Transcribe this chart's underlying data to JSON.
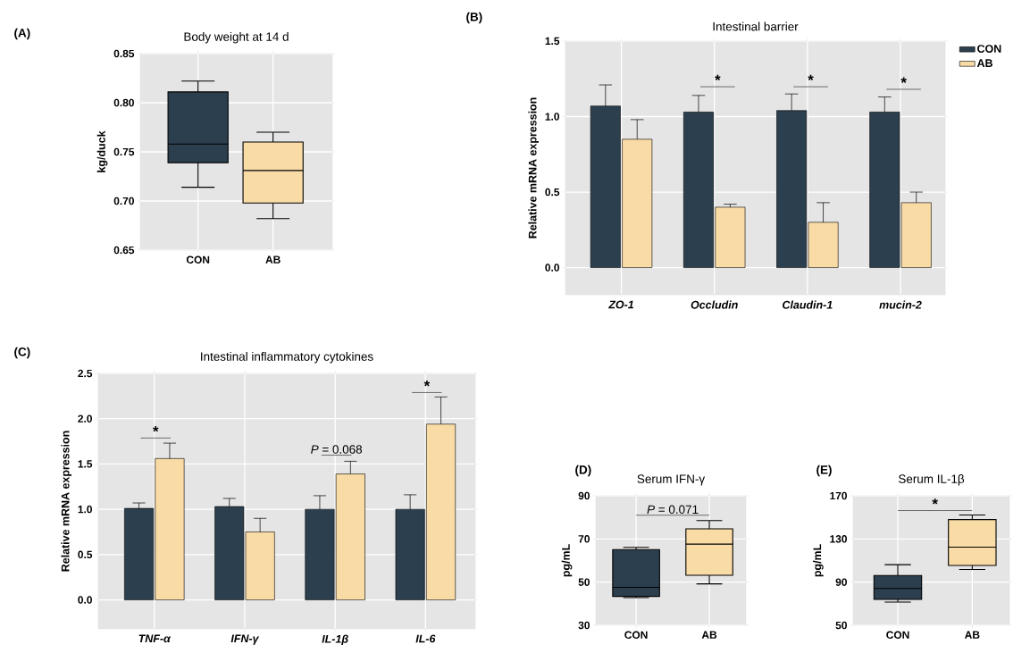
{
  "chart_data": [
    {
      "type": "box",
      "title": "Body weight at 14 d",
      "ylabel": "kg/duck",
      "categories": [
        "CON",
        "AB"
      ],
      "colors": [
        "#2b3f4e",
        "#f9dba6"
      ],
      "boxes": [
        {
          "low": 0.714,
          "q1": 0.739,
          "median": 0.758,
          "q3": 0.811,
          "high": 0.822
        },
        {
          "low": 0.682,
          "q1": 0.698,
          "median": 0.731,
          "q3": 0.76,
          "high": 0.77
        }
      ],
      "ylim": [
        0.65,
        0.85
      ],
      "yticks": [
        {
          "value": 0.65,
          "label": "0.65"
        },
        {
          "value": 0.7,
          "label": "0.70"
        },
        {
          "value": 0.75,
          "label": "0.75"
        },
        {
          "value": 0.8,
          "label": "0.80"
        },
        {
          "value": 0.85,
          "label": "0.85"
        }
      ],
      "grid": true,
      "annotations": [
        "(A)"
      ]
    },
    {
      "type": "bar",
      "title": "Intestinal barrier",
      "ylabel": "Relative mRNA expression",
      "categories": [
        "ZO-1",
        "Occludin",
        "Claudin-1",
        "mucin-2"
      ],
      "series": [
        {
          "name": "CON",
          "color": "#2b3f4e",
          "values": [
            1.07,
            1.03,
            1.04,
            1.03
          ],
          "errors": [
            [
              1.07,
              1.21
            ],
            [
              1.03,
              1.14
            ],
            [
              1.04,
              1.15
            ],
            [
              1.03,
              1.13
            ]
          ]
        },
        {
          "name": "AB",
          "color": "#f9dba6",
          "values": [
            0.85,
            0.4,
            0.3,
            0.43
          ],
          "errors": [
            [
              0.85,
              0.98
            ],
            [
              0.4,
              0.42
            ],
            [
              0.3,
              0.43
            ],
            [
              0.43,
              0.5
            ]
          ]
        }
      ],
      "ylim": [
        -0.18,
        1.5
      ],
      "yticks": [
        {
          "value": 0,
          "label": "0.0"
        },
        0.5,
        {
          "value": 1,
          "label": "1.0"
        },
        1.5
      ],
      "grid": true,
      "legend": "right",
      "annotations": [
        "(B)",
        "*",
        "*",
        "*"
      ]
    },
    {
      "type": "bar",
      "title": "Intestinal inflammatory cytokines",
      "ylabel": "Relative mRNA expression",
      "categories": [
        "TNF-α",
        "IFN-γ",
        "IL-1β",
        "IL-6"
      ],
      "series": [
        {
          "color": "#2b3f4e",
          "values": [
            1.01,
            1.03,
            1.0,
            1.0
          ],
          "errors": [
            [
              1.01,
              1.07
            ],
            [
              1.03,
              1.12
            ],
            [
              1.0,
              1.15
            ],
            [
              1.0,
              1.16
            ]
          ]
        },
        {
          "color": "#f9dba6",
          "values": [
            1.56,
            0.75,
            1.39,
            1.94
          ],
          "errors": [
            [
              1.56,
              1.73
            ],
            [
              0.75,
              0.9
            ],
            [
              1.39,
              1.53
            ],
            [
              1.94,
              2.24
            ]
          ]
        }
      ],
      "ylim": [
        -0.32,
        2.5
      ],
      "yticks": [
        {
          "value": 0,
          "label": "0.0"
        },
        0.5,
        {
          "value": 1,
          "label": "1.0"
        },
        1.5,
        {
          "value": 2,
          "label": "2.0"
        },
        2.5
      ],
      "grid": true,
      "annotations": [
        "(C)",
        "*",
        "*P* = 0.068",
        "*"
      ]
    },
    {
      "type": "box",
      "title": "Serum IFN-γ",
      "ylabel": "pg/mL",
      "categories": [
        "CON",
        "AB"
      ],
      "colors": [
        "#2b3f4e",
        "#f9dba6"
      ],
      "boxes": [
        {
          "low": 42.8,
          "q1": 43.4,
          "median": 47.6,
          "q3": 65.1,
          "high": 66.1
        },
        {
          "low": 49.2,
          "q1": 53.2,
          "median": 67.6,
          "q3": 74.7,
          "high": 78.5
        }
      ],
      "ylim": [
        30,
        90
      ],
      "yticks": [
        30,
        50,
        70,
        90
      ],
      "grid": true,
      "annotations": [
        "(D)",
        "*P* = 0.071"
      ]
    },
    {
      "type": "box",
      "title": "Serum IL-1β",
      "ylabel": "pg/mL",
      "categories": [
        "CON",
        "AB"
      ],
      "colors": [
        "#2b3f4e",
        "#f9dba6"
      ],
      "boxes": [
        {
          "low": 71.5,
          "q1": 74,
          "median": 84.1,
          "q3": 96.2,
          "high": 106.2
        },
        {
          "low": 101.7,
          "q1": 105.4,
          "median": 122.4,
          "q3": 148,
          "high": 152.2
        }
      ],
      "ylim": [
        50,
        170
      ],
      "yticks": [
        50,
        90,
        130,
        170
      ],
      "grid": true,
      "annotations": [
        "(E)",
        "*"
      ]
    }
  ]
}
